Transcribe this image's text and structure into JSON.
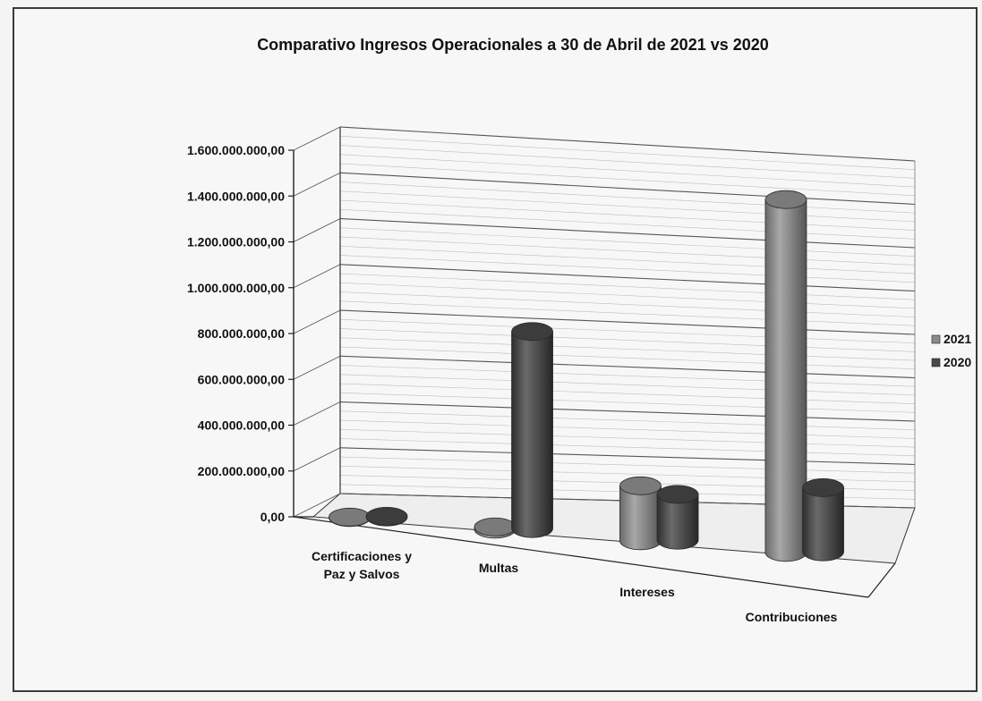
{
  "chart_data": {
    "type": "bar",
    "style": "3d-cylinder",
    "title": "Comparativo Ingresos Operacionales a 30 de Abril de 2021 vs 2020",
    "xlabel": "",
    "ylabel": "",
    "categories": [
      "Certificaciones y Paz y Salvos",
      "Multas",
      "Intereses",
      "Contribuciones"
    ],
    "category_lines": [
      [
        "Certificaciones y",
        "Paz y Salvos"
      ],
      [
        "Multas"
      ],
      [
        "Intereses"
      ],
      [
        "Contribuciones"
      ]
    ],
    "series": [
      {
        "name": "2021",
        "values": [
          2000000,
          10000000,
          240000000,
          1540000000
        ],
        "color": "#8a8a8a"
      },
      {
        "name": "2020",
        "values": [
          3000000,
          860000000,
          200000000,
          280000000
        ],
        "color": "#4a4a4a"
      }
    ],
    "ylim": [
      0,
      1600000000
    ],
    "yticks": [
      0,
      200000000,
      400000000,
      600000000,
      800000000,
      1000000000,
      1200000000,
      1400000000,
      1600000000
    ],
    "ytick_labels": [
      "0,00",
      "200.000.000,00",
      "400.000.000,00",
      "600.000.000,00",
      "800.000.000,00",
      "1.000.000.000,00",
      "1.200.000.000,00",
      "1.400.000.000,00",
      "1.600.000.000,00"
    ],
    "grid": true,
    "legend_position": "right"
  }
}
